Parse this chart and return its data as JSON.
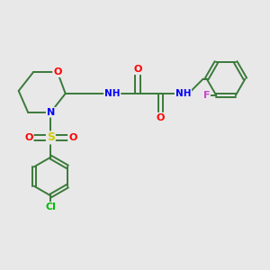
{
  "background_color": "#e8e8e8",
  "bond_color": "#3a7a3a",
  "atom_colors": {
    "O": "#ff0000",
    "N": "#0000ff",
    "S": "#cccc00",
    "Cl": "#00bb00",
    "F": "#cc44cc",
    "C": "#3a7a3a",
    "H": "#888888"
  },
  "figsize": [
    3.0,
    3.0
  ],
  "dpi": 100
}
